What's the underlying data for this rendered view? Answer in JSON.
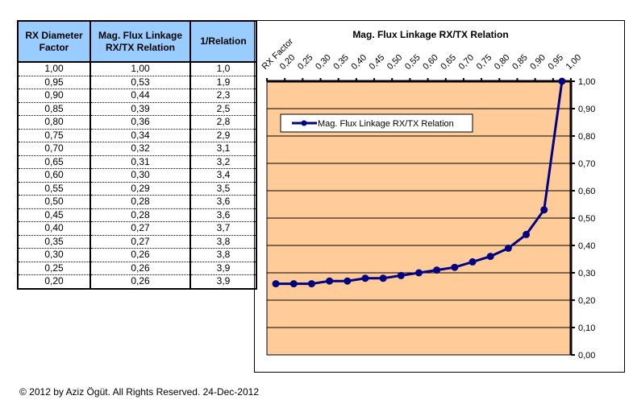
{
  "table": {
    "headers": [
      "RX Diameter Factor",
      "Mag. Flux Linkage RX/TX Relation",
      "1/Relation"
    ],
    "rows": [
      [
        "1,00",
        "1,00",
        "1,0"
      ],
      [
        "0,95",
        "0,53",
        "1,9"
      ],
      [
        "0,90",
        "0,44",
        "2,3"
      ],
      [
        "0,85",
        "0,39",
        "2,5"
      ],
      [
        "0,80",
        "0,36",
        "2,8"
      ],
      [
        "0,75",
        "0,34",
        "2,9"
      ],
      [
        "0,70",
        "0,32",
        "3,1"
      ],
      [
        "0,65",
        "0,31",
        "3,2"
      ],
      [
        "0,60",
        "0,30",
        "3,4"
      ],
      [
        "0,55",
        "0,29",
        "3,5"
      ],
      [
        "0,50",
        "0,28",
        "3,6"
      ],
      [
        "0,45",
        "0,28",
        "3,6"
      ],
      [
        "0,40",
        "0,27",
        "3,7"
      ],
      [
        "0,35",
        "0,27",
        "3,8"
      ],
      [
        "0,30",
        "0,26",
        "3,8"
      ],
      [
        "0,25",
        "0,26",
        "3,9"
      ],
      [
        "0,20",
        "0,26",
        "3,9"
      ]
    ]
  },
  "chart_data": {
    "type": "line",
    "title": "Mag. Flux Linkage RX/TX Relation",
    "xlabel": "RX Factor",
    "ylabel": "",
    "x_tick_labels": [
      "0,20",
      "0,25",
      "0,30",
      "0,35",
      "0,40",
      "0,45",
      "0,50",
      "0,55",
      "0,60",
      "0,65",
      "0,70",
      "0,75",
      "0,80",
      "0,85",
      "0,90",
      "0,95",
      "1,00"
    ],
    "y_tick_labels": [
      "0,00",
      "0,10",
      "0,20",
      "0,30",
      "0,40",
      "0,50",
      "0,60",
      "0,70",
      "0,80",
      "0,90",
      "1,00"
    ],
    "ylim": [
      0,
      1
    ],
    "grid": true,
    "legend": "top-left",
    "series": [
      {
        "name": "Mag. Flux Linkage RX/TX Relation",
        "color": "#000080",
        "values": [
          0.26,
          0.26,
          0.26,
          0.27,
          0.27,
          0.28,
          0.28,
          0.29,
          0.3,
          0.31,
          0.32,
          0.34,
          0.36,
          0.39,
          0.44,
          0.53,
          1.0
        ]
      }
    ],
    "plot_bg": "#ffcc99"
  },
  "footer": "© 2012 by Aziz Ögüt. All Rights Reserved. 24-Dec-2012"
}
